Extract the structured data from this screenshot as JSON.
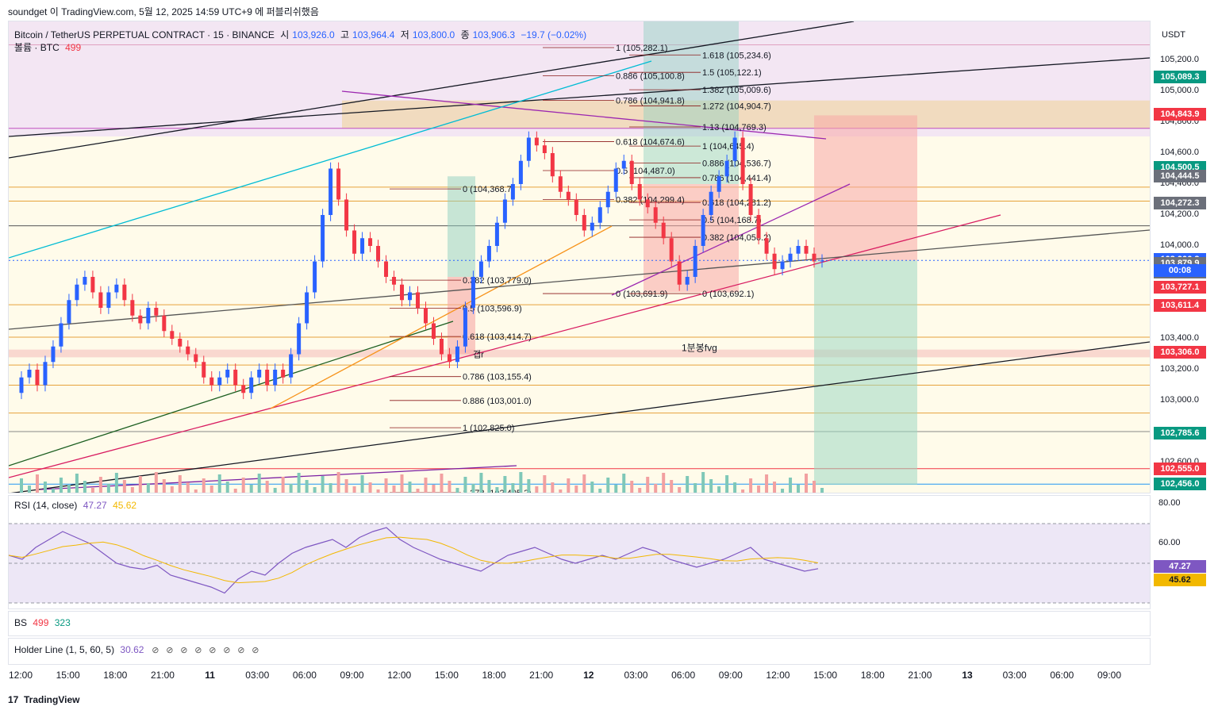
{
  "header": {
    "caption": "soundget 이 TradingView.com, 5월 12, 2025 14:59 UTC+9 에 퍼블리쉬했음"
  },
  "main_legend": {
    "symbol": "Bitcoin / TetherUS PERPETUAL CONTRACT · 15 · BINANCE",
    "o_label": "시",
    "o": "103,926.0",
    "h_label": "고",
    "h": "103,964.4",
    "l_label": "저",
    "l": "103,800.0",
    "c_label": "종",
    "c": "103,906.3",
    "change": "−19.7 (−0.02%)",
    "volume_label": "볼륨 · BTC",
    "volume_value": "499"
  },
  "price_scale": {
    "currency": "USDT",
    "labels": [
      "105,200.0",
      "105,000.0",
      "104,800.0",
      "104,600.0",
      "104,400.0",
      "104,200.0",
      "104,000.0",
      "103,400.0",
      "103,200.0",
      "103,000.0",
      "102,800.0",
      "102,600.0"
    ],
    "badges": [
      {
        "text": "105,089.3",
        "color": "#089981",
        "price": 105089.3
      },
      {
        "text": "104,843.9",
        "color": "#f23645",
        "price": 104843.9
      },
      {
        "text": "104,500.5",
        "color": "#089981",
        "price": 104500.5
      },
      {
        "text": "104,444.5",
        "color": "#6b6f7a",
        "price": 104444.5
      },
      {
        "text": "104,272.3",
        "color": "#6b6f7a",
        "price": 104272.3
      },
      {
        "text": "103,906.3",
        "color": "#2962ff",
        "price": 103906.3
      },
      {
        "text": "103,879.9",
        "color": "#6b6f7a",
        "price": 103879.9
      },
      {
        "text": "103,826.7",
        "color": "#6b6f7a",
        "price": 103826.7
      },
      {
        "text": "103,727.1",
        "color": "#f23645",
        "price": 103727.1
      },
      {
        "text": "103,611.4",
        "color": "#f23645",
        "price": 103611.4
      },
      {
        "text": "103,306.0",
        "color": "#f23645",
        "price": 103306.0
      },
      {
        "text": "102,785.6",
        "color": "#089981",
        "price": 102785.6
      },
      {
        "text": "102,555.0",
        "color": "#f23645",
        "price": 102555.0
      },
      {
        "text": "102,456.0",
        "color": "#089981",
        "price": 102456.0
      }
    ],
    "countdown": "00:08"
  },
  "fib_labels": [
    "1 (105,282.1)",
    "1.618 (105,234.6)",
    "1.5 (105,122.1)",
    "0.886 (105,100.8)",
    "1.382 (105,009.6)",
    "0.786 (104,941.8)",
    "1.272 (104,904.7)",
    "1.13 (104,769.3)",
    "0.618 (104,674.6)",
    "1 (104,645.4)",
    "0.5 (104,487.0)",
    "0.886 (104,536.7)",
    "0.786 (104,441.4)",
    "0 (104,368.7)",
    "0.382 (104,299.4)",
    "0.618 (104,281.2)",
    "0.5 (104,168.7)",
    "0.382 (104,056.2)",
    "0.382 (103,779.0)",
    "0 (103,691.9)",
    "0 (103,692.1)",
    "0.5 (103,596.9)",
    "0.618 (103,414.7)",
    "0.786 (103,155.4)",
    "0.886 (103,001.0)",
    "1 (102,825.0)",
    "1.272 (102,405.2)"
  ],
  "annotations": {
    "fvg": "1분봉fvg",
    "gap_mark": "갭r"
  },
  "rsi": {
    "label": "RSI (14, close)",
    "value1": "47.27",
    "value2": "45.62",
    "scale": [
      "80.00",
      "60.00"
    ],
    "badge1": "47.27",
    "badge2": "45.62"
  },
  "bs": {
    "label": "BS",
    "v1": "499",
    "v2": "323"
  },
  "holder": {
    "label": "Holder Line (1, 5, 60, 5)",
    "value": "30.62"
  },
  "time_axis": [
    "12:00",
    "15:00",
    "18:00",
    "21:00",
    "11",
    "03:00",
    "06:00",
    "09:00",
    "12:00",
    "15:00",
    "18:00",
    "21:00",
    "12",
    "03:00",
    "06:00",
    "09:00",
    "12:00",
    "15:00",
    "18:00",
    "21:00",
    "13",
    "03:00",
    "06:00",
    "09:00"
  ],
  "footer": {
    "brand": "TradingView"
  },
  "chart_data": {
    "type": "candlestick",
    "title": "Bitcoin / TetherUS PERPETUAL CONTRACT · 15 · BINANCE",
    "ylim": [
      102400,
      105400
    ],
    "last_price": 103906.3,
    "colors": {
      "up": "#089981",
      "down": "#f23645"
    },
    "close_series": [
      103050,
      103150,
      103200,
      103100,
      103250,
      103350,
      103500,
      103650,
      103750,
      103800,
      103700,
      103600,
      103700,
      103750,
      103650,
      103550,
      103500,
      103600,
      103550,
      103450,
      103400,
      103350,
      103300,
      103250,
      103150,
      103100,
      103150,
      103200,
      103100,
      103050,
      103150,
      103200,
      103100,
      103200,
      103150,
      103300,
      103500,
      103700,
      103900,
      104200,
      104500,
      104300,
      104100,
      103950,
      104050,
      104000,
      103900,
      103800,
      103750,
      103650,
      103700,
      103600,
      103500,
      103400,
      103300,
      103250,
      103350,
      103600,
      103800,
      103900,
      104000,
      104150,
      104300,
      104400,
      104550,
      104700,
      104650,
      104600,
      104450,
      104350,
      104300,
      104200,
      104100,
      104150,
      104250,
      104350,
      104500,
      104550,
      104400,
      104300,
      104250,
      104150,
      104050,
      103900,
      103750,
      103800,
      104000,
      104200,
      104350,
      104450,
      104550,
      104700,
      104400,
      104200,
      104050,
      103950,
      103850,
      103900,
      103950,
      104000,
      103950,
      103900,
      103906.3
    ],
    "rsi_series": [
      54,
      52,
      58,
      62,
      66,
      63,
      60,
      55,
      50,
      48,
      47,
      49,
      44,
      42,
      40,
      38,
      35,
      42,
      46,
      44,
      50,
      55,
      58,
      60,
      62,
      58,
      63,
      66,
      68,
      62,
      58,
      55,
      52,
      50,
      48,
      46,
      50,
      54,
      56,
      58,
      55,
      52,
      50,
      52,
      54,
      52,
      55,
      58,
      56,
      52,
      50,
      48,
      50,
      52,
      55,
      58,
      52,
      50,
      48,
      46,
      47.27
    ]
  }
}
